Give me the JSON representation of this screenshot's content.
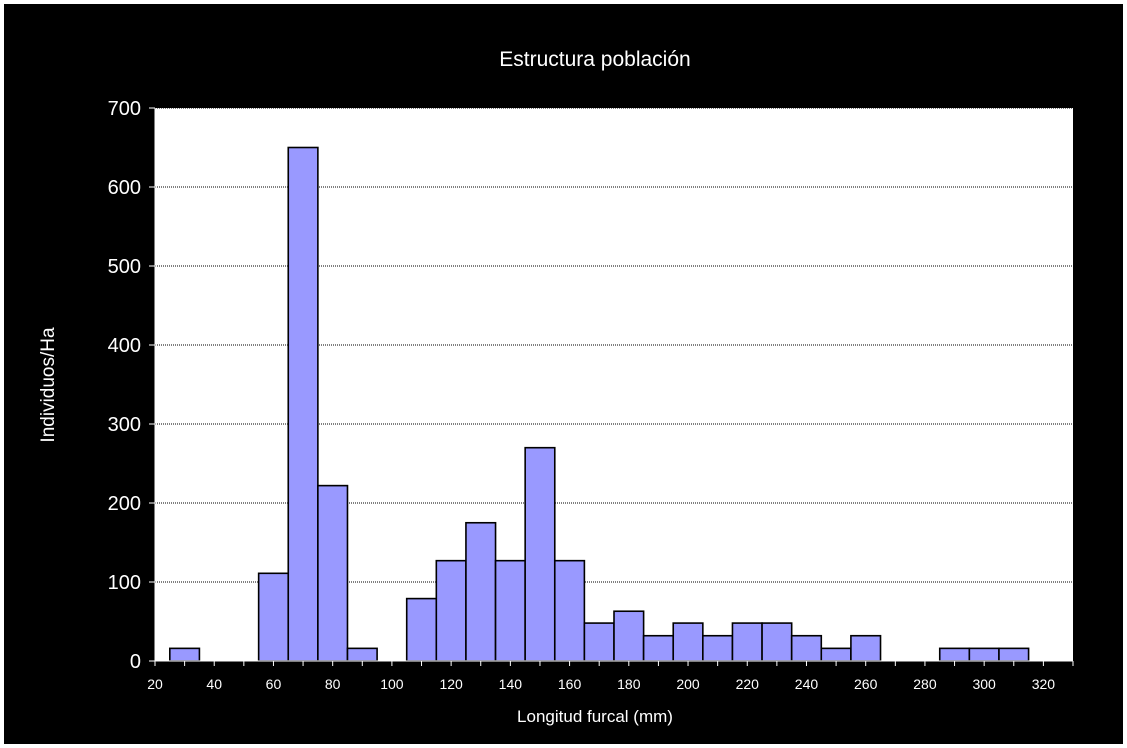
{
  "chart_data": {
    "type": "bar",
    "title": "Estructura población",
    "xlabel": "Longitud furcal (mm)",
    "ylabel": "Individuos/Ha",
    "ylim": [
      0,
      700
    ],
    "yticks": [
      0,
      100,
      200,
      300,
      400,
      500,
      600,
      700
    ],
    "xlim": [
      20,
      330
    ],
    "xticks": [
      20,
      40,
      60,
      80,
      100,
      120,
      140,
      160,
      180,
      200,
      220,
      240,
      260,
      280,
      300,
      320
    ],
    "bin_width": 10,
    "grid": true,
    "legend": "none",
    "bar_color": "#9999ff",
    "bars": [
      {
        "x": 30,
        "value": 16
      },
      {
        "x": 40,
        "value": 0
      },
      {
        "x": 50,
        "value": 0
      },
      {
        "x": 60,
        "value": 111
      },
      {
        "x": 70,
        "value": 650
      },
      {
        "x": 80,
        "value": 222
      },
      {
        "x": 90,
        "value": 16
      },
      {
        "x": 100,
        "value": 0
      },
      {
        "x": 110,
        "value": 79
      },
      {
        "x": 120,
        "value": 127
      },
      {
        "x": 130,
        "value": 175
      },
      {
        "x": 140,
        "value": 127
      },
      {
        "x": 150,
        "value": 270
      },
      {
        "x": 160,
        "value": 127
      },
      {
        "x": 170,
        "value": 48
      },
      {
        "x": 180,
        "value": 63
      },
      {
        "x": 190,
        "value": 32
      },
      {
        "x": 200,
        "value": 48
      },
      {
        "x": 210,
        "value": 32
      },
      {
        "x": 220,
        "value": 48
      },
      {
        "x": 230,
        "value": 48
      },
      {
        "x": 240,
        "value": 32
      },
      {
        "x": 250,
        "value": 16
      },
      {
        "x": 260,
        "value": 32
      },
      {
        "x": 270,
        "value": 0
      },
      {
        "x": 280,
        "value": 0
      },
      {
        "x": 290,
        "value": 16
      },
      {
        "x": 300,
        "value": 16
      },
      {
        "x": 310,
        "value": 16
      }
    ]
  }
}
